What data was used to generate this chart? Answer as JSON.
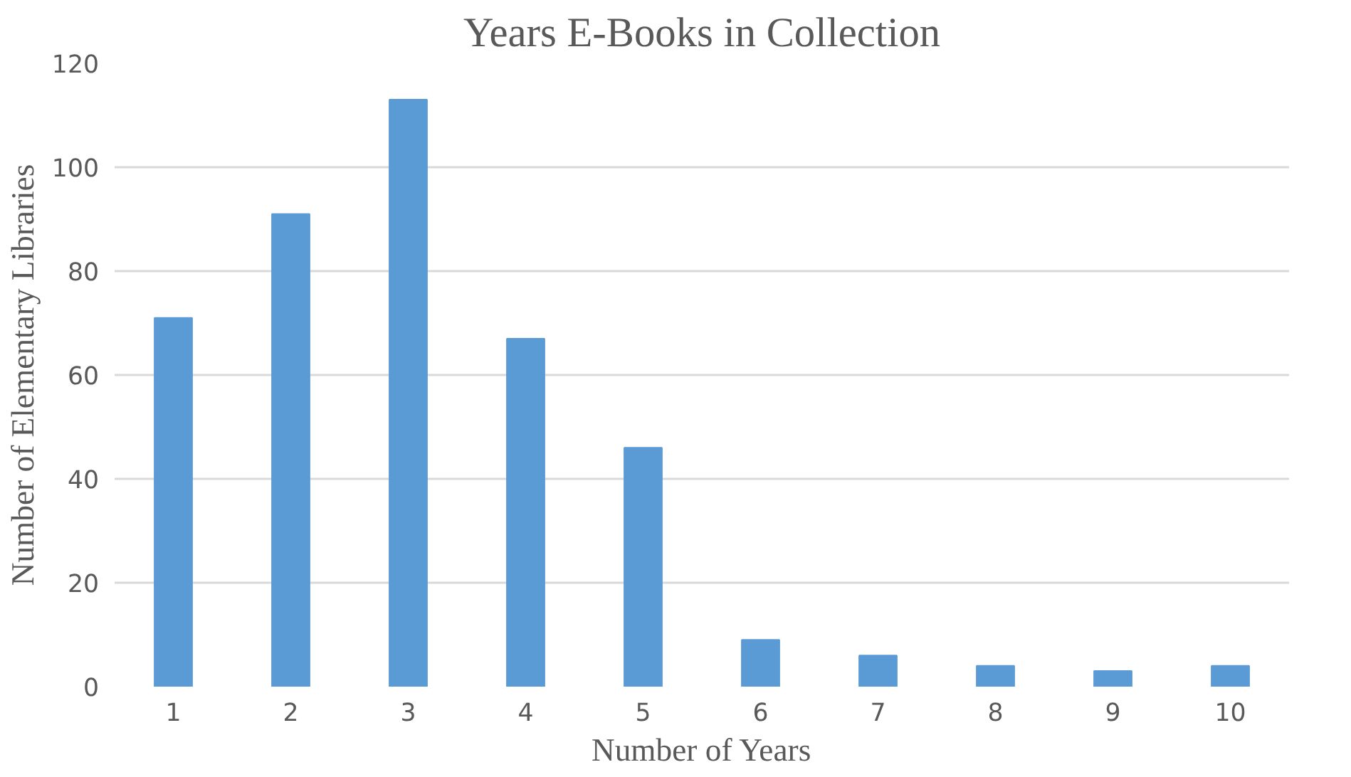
{
  "chart_data": {
    "type": "bar",
    "title": "Years E-Books in Collection",
    "xlabel": "Number of Years",
    "ylabel": "Number of Elementary Libraries",
    "categories": [
      "1",
      "2",
      "3",
      "4",
      "5",
      "6",
      "7",
      "8",
      "9",
      "10"
    ],
    "values": [
      71,
      91,
      113,
      67,
      46,
      9,
      6,
      4,
      3,
      4
    ],
    "color": "#5b9bd5",
    "ylim": [
      0,
      120
    ],
    "yticks": [
      0,
      20,
      40,
      60,
      80,
      100,
      120
    ],
    "grid": "y"
  }
}
